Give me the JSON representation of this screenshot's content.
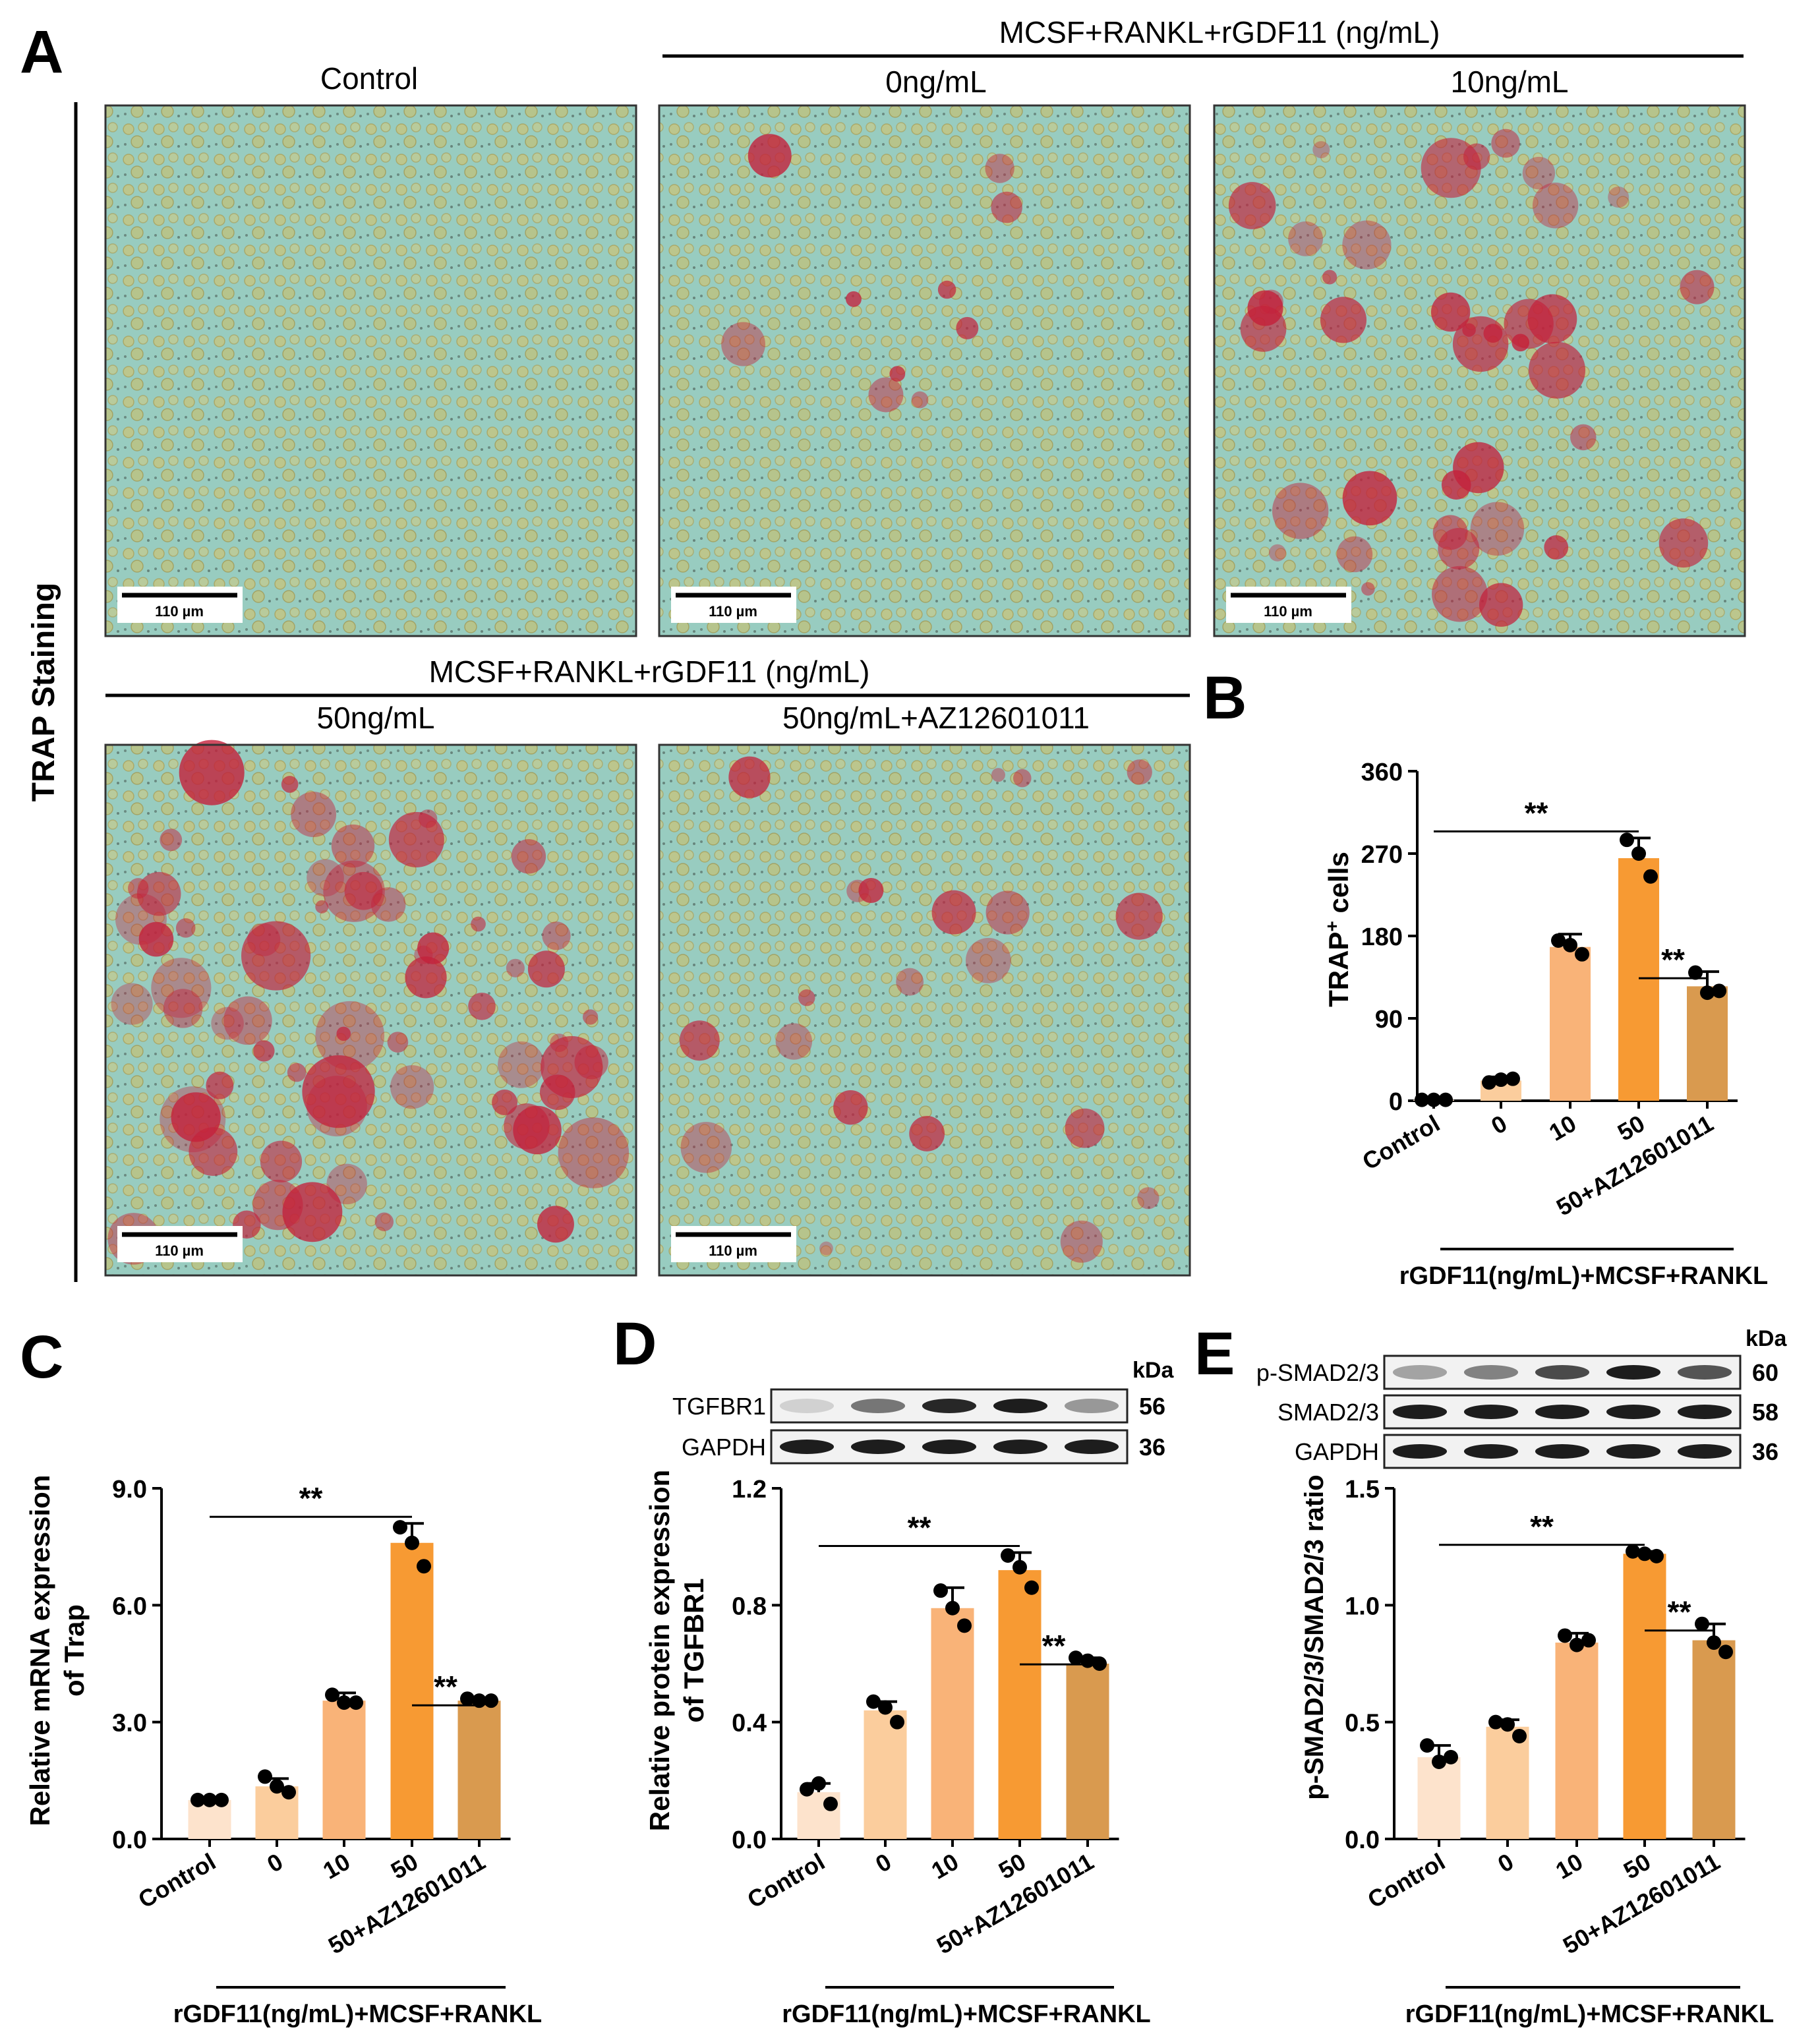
{
  "panel_letters": [
    "A",
    "B",
    "C",
    "D",
    "E"
  ],
  "panel_a": {
    "side_label": "TRAP Staining",
    "group_label_top": "MCSF+RANKL+rGDF11  (ng/mL)",
    "group_label_bottom": "MCSF+RANKL+rGDF11  (ng/mL)",
    "images": [
      {
        "label": "Control",
        "scale_bar": "110 µm",
        "stain_level": 0.0
      },
      {
        "label": "0ng/mL",
        "scale_bar": "110 µm",
        "stain_level": 0.15
      },
      {
        "label": "10ng/mL",
        "scale_bar": "110 µm",
        "stain_level": 0.55
      },
      {
        "label": "50ng/mL",
        "scale_bar": "110 µm",
        "stain_level": 0.9
      },
      {
        "label": "50ng/mL+AZ12601011",
        "scale_bar": "110 µm",
        "stain_level": 0.3
      }
    ]
  },
  "colors": {
    "bars": [
      "#fde3cc",
      "#fbcd9d",
      "#f9b378",
      "#f79a33",
      "#d99a4f"
    ],
    "dots": "#000000",
    "stain_red": "#c4203a",
    "cell_yellow": "#d8c062",
    "background_cyan": "#98ccc0"
  },
  "shared": {
    "categories": [
      "Control",
      "0",
      "10",
      "50",
      "50+AZ12601011"
    ],
    "group_label": "rGDF11(ng/mL)+MCSF+RANKL",
    "significance": "**"
  },
  "blots": {
    "kda_label": "kDa",
    "panel_d": [
      {
        "name": "TGFBR1",
        "kda": "56",
        "intensity": [
          0.15,
          0.55,
          0.9,
          0.95,
          0.4
        ]
      },
      {
        "name": "GAPDH",
        "kda": "36",
        "intensity": [
          0.95,
          0.95,
          0.95,
          0.95,
          0.95
        ]
      }
    ],
    "panel_e": [
      {
        "name": "p-SMAD2/3",
        "kda": "60",
        "intensity": [
          0.35,
          0.5,
          0.75,
          0.95,
          0.7
        ]
      },
      {
        "name": "SMAD2/3",
        "kda": "58",
        "intensity": [
          0.95,
          0.95,
          0.95,
          0.95,
          0.95
        ]
      },
      {
        "name": "GAPDH",
        "kda": "36",
        "intensity": [
          0.95,
          0.95,
          0.95,
          0.95,
          0.95
        ]
      }
    ]
  },
  "chart_data": [
    {
      "id": "B",
      "type": "bar",
      "categories": [
        "Control",
        "0",
        "10",
        "50",
        "50+AZ12601011"
      ],
      "values": [
        1,
        22,
        168,
        265,
        125
      ],
      "errors": [
        1,
        4,
        14,
        22,
        16
      ],
      "points": [
        [
          1,
          1,
          1
        ],
        [
          20,
          23,
          24
        ],
        [
          175,
          170,
          160
        ],
        [
          285,
          270,
          245
        ],
        [
          140,
          118,
          120
        ]
      ],
      "ylim": [
        0,
        360
      ],
      "yticks": [
        "0",
        "90",
        "180",
        "270",
        "360"
      ],
      "ylabel_main": "TRAP",
      "ylabel_sup": "+",
      "ylabel_rest": " cells",
      "xlabel": "rGDF11(ng/mL)+MCSF+RANKL",
      "significance": [
        {
          "from": 0,
          "to": 3,
          "label": "**"
        },
        {
          "from": 3,
          "to": 4,
          "label": "**"
        }
      ]
    },
    {
      "id": "C",
      "type": "bar",
      "categories": [
        "Control",
        "0",
        "10",
        "50",
        "50+AZ12601011"
      ],
      "values": [
        1.0,
        1.35,
        3.55,
        7.6,
        3.55
      ],
      "errors": [
        0.05,
        0.2,
        0.2,
        0.5,
        0.05
      ],
      "points": [
        [
          1.0,
          1.0,
          1.0
        ],
        [
          1.6,
          1.35,
          1.2
        ],
        [
          3.7,
          3.5,
          3.5
        ],
        [
          8.0,
          7.6,
          7.0
        ],
        [
          3.6,
          3.55,
          3.55
        ]
      ],
      "ylim": [
        0,
        9
      ],
      "yticks": [
        "0.0",
        "3.0",
        "6.0",
        "9.0"
      ],
      "ylabel_line1": "Relative mRNA expression",
      "ylabel_line2": "of Trap",
      "xlabel": "rGDF11(ng/mL)+MCSF+RANKL",
      "significance": [
        {
          "from": 0,
          "to": 3,
          "label": "**"
        },
        {
          "from": 3,
          "to": 4,
          "label": "**"
        }
      ]
    },
    {
      "id": "D",
      "type": "bar",
      "categories": [
        "Control",
        "0",
        "10",
        "50",
        "50+AZ12601011"
      ],
      "values": [
        0.16,
        0.44,
        0.79,
        0.92,
        0.6
      ],
      "errors": [
        0.03,
        0.03,
        0.07,
        0.06,
        0.02
      ],
      "points": [
        [
          0.17,
          0.19,
          0.12
        ],
        [
          0.47,
          0.45,
          0.4
        ],
        [
          0.85,
          0.79,
          0.73
        ],
        [
          0.97,
          0.93,
          0.86
        ],
        [
          0.62,
          0.61,
          0.6
        ]
      ],
      "ylim": [
        0,
        1.2
      ],
      "yticks": [
        "0.0",
        "0.4",
        "0.8",
        "1.2"
      ],
      "ylabel_line1": "Relative protein expression",
      "ylabel_line2": "of TGFBR1",
      "xlabel": "rGDF11(ng/mL)+MCSF+RANKL",
      "significance": [
        {
          "from": 0,
          "to": 3,
          "label": "**"
        },
        {
          "from": 3,
          "to": 4,
          "label": "**"
        }
      ]
    },
    {
      "id": "E",
      "type": "bar",
      "categories": [
        "Control",
        "0",
        "10",
        "50",
        "50+AZ12601011"
      ],
      "values": [
        0.35,
        0.48,
        0.84,
        1.22,
        0.85
      ],
      "errors": [
        0.05,
        0.03,
        0.04,
        0.01,
        0.07
      ],
      "points": [
        [
          0.4,
          0.33,
          0.35
        ],
        [
          0.5,
          0.49,
          0.44
        ],
        [
          0.87,
          0.83,
          0.85
        ],
        [
          1.23,
          1.22,
          1.21
        ],
        [
          0.92,
          0.84,
          0.8
        ]
      ],
      "ylim": [
        0,
        1.5
      ],
      "yticks": [
        "0.0",
        "0.5",
        "1.0",
        "1.5"
      ],
      "ylabel": "p-SMAD2/3/SMAD2/3 ratio",
      "xlabel": "rGDF11(ng/mL)+MCSF+RANKL",
      "significance": [
        {
          "from": 0,
          "to": 3,
          "label": "**"
        },
        {
          "from": 3,
          "to": 4,
          "label": "**"
        }
      ]
    }
  ]
}
